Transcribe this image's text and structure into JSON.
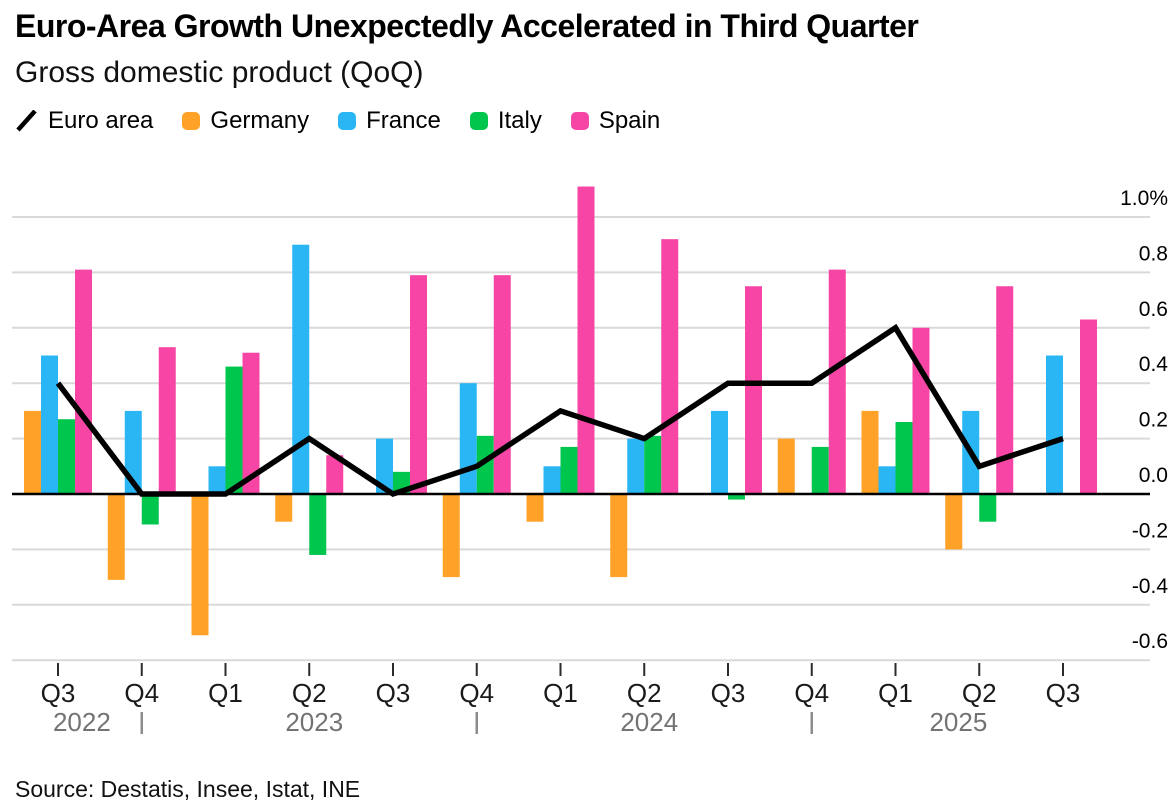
{
  "header": {
    "title": "Euro-Area Growth Unexpectedly Accelerated in Third Quarter",
    "subtitle": "Gross domestic product (QoQ)"
  },
  "source_note": "Source: Destatis, Insee, Istat, INE",
  "colors": {
    "euro_area_line": "#000000",
    "germany": "#FFA227",
    "france": "#2AB5F4",
    "italy": "#00C64E",
    "spain": "#F645A4",
    "gridline": "#D9D9D9",
    "zero_line": "#000000",
    "tick": "#2B2B2B",
    "quarter_label": "#1A1A1A",
    "year_label": "#737373",
    "axis_label": "#000000"
  },
  "chart_data": {
    "type": "bar",
    "title": "Euro-Area Growth Unexpectedly Accelerated in Third Quarter",
    "subtitle": "Gross domestic product (QoQ)",
    "ylabel": "",
    "xlabel": "",
    "unit": "%",
    "ylim": [
      -0.7,
      1.15
    ],
    "grid": true,
    "legend_position": "top-left",
    "categories": [
      "Q3 2022",
      "Q4 2022",
      "Q1 2023",
      "Q2 2023",
      "Q3 2023",
      "Q4 2023",
      "Q1 2024",
      "Q2 2024",
      "Q3 2024",
      "Q4 2024",
      "Q1 2025",
      "Q2 2025",
      "Q3 2025"
    ],
    "x_tick_labels": [
      "Q3",
      "Q4",
      "Q1",
      "Q2",
      "Q3",
      "Q4",
      "Q1",
      "Q2",
      "Q3",
      "Q4",
      "Q1",
      "Q2",
      "Q3"
    ],
    "year_groups": [
      {
        "label": "2022",
        "first_index": 0,
        "last_index": 1
      },
      {
        "label": "2023",
        "first_index": 2,
        "last_index": 5
      },
      {
        "label": "2024",
        "first_index": 6,
        "last_index": 9
      },
      {
        "label": "2025",
        "first_index": 10,
        "last_index": 12
      }
    ],
    "y_ticks": [
      {
        "value": 1.0,
        "label": "1.0%"
      },
      {
        "value": 0.8,
        "label": "0.8"
      },
      {
        "value": 0.6,
        "label": "0.6"
      },
      {
        "value": 0.4,
        "label": "0.4"
      },
      {
        "value": 0.2,
        "label": "0.2"
      },
      {
        "value": 0.0,
        "label": "0.0"
      },
      {
        "value": -0.2,
        "label": "-0.2"
      },
      {
        "value": -0.4,
        "label": "-0.4"
      },
      {
        "value": -0.6,
        "label": "-0.6"
      }
    ],
    "line_series": {
      "name": "Euro area",
      "color": "#000000",
      "values": [
        0.4,
        0.0,
        0.0,
        0.2,
        0.0,
        0.1,
        0.3,
        0.2,
        0.4,
        0.4,
        0.6,
        0.1,
        0.2
      ]
    },
    "series": [
      {
        "name": "Germany",
        "color": "#FFA227",
        "values": [
          0.3,
          -0.31,
          -0.51,
          -0.1,
          0.0,
          -0.3,
          -0.1,
          -0.3,
          0.0,
          0.2,
          0.3,
          -0.2,
          0.0
        ]
      },
      {
        "name": "France",
        "color": "#2AB5F4",
        "values": [
          0.5,
          0.3,
          0.1,
          0.9,
          0.2,
          0.4,
          0.1,
          0.2,
          0.3,
          0.0,
          0.1,
          0.3,
          0.5
        ]
      },
      {
        "name": "Italy",
        "color": "#00C64E",
        "values": [
          0.27,
          -0.11,
          0.46,
          -0.22,
          0.08,
          0.21,
          0.17,
          0.21,
          -0.02,
          0.17,
          0.26,
          -0.1,
          0.0
        ]
      },
      {
        "name": "Spain",
        "color": "#F645A4",
        "values": [
          0.81,
          0.53,
          0.51,
          0.14,
          0.79,
          0.79,
          1.11,
          0.92,
          0.75,
          0.81,
          0.6,
          0.75,
          0.63
        ]
      }
    ],
    "legend": [
      {
        "label": "Euro area",
        "swatch": "line",
        "color": "#000000"
      },
      {
        "label": "Germany",
        "swatch": "square",
        "color": "#FFA227"
      },
      {
        "label": "France",
        "swatch": "square",
        "color": "#2AB5F4"
      },
      {
        "label": "Italy",
        "swatch": "square",
        "color": "#00C64E"
      },
      {
        "label": "Spain",
        "swatch": "square",
        "color": "#F645A4"
      }
    ]
  }
}
